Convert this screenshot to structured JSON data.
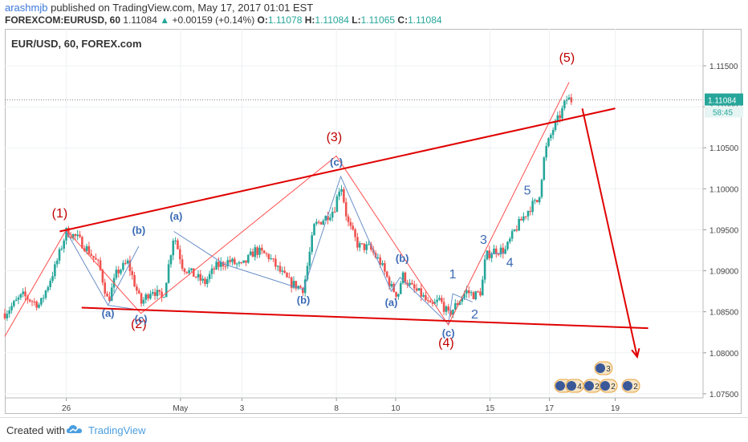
{
  "header": {
    "username": "arashmjb",
    "published_text": "published on TradingView.com, May 17, 2017 01:01 EST",
    "symbol_full": "FOREXCOM:EURUSD, 60",
    "last": "1.11084",
    "change": "+0.00159 (+0.14%)",
    "o_label": "O:",
    "o_value": "1.11078",
    "h_label": "H:",
    "h_value": "1.11084",
    "l_label": "L:",
    "l_value": "1.11065",
    "c_label": "C:",
    "c_value": "1.11084"
  },
  "chart_title": "EUR/USD, 60, FOREX.com",
  "footer": {
    "created_with": "Created with",
    "brand": "TradingView"
  },
  "colors": {
    "bull": "#26a69a",
    "bear": "#ef5350",
    "red": "#e00000",
    "blue": "#6a8fc8",
    "label_blue": "#3b6bb5"
  },
  "chart_data": {
    "type": "candlestick",
    "price_axis": {
      "range": [
        1.0745,
        1.1195
      ],
      "ticks": [
        "1.11500",
        "1.11000",
        "1.10500",
        "1.10000",
        "1.09500",
        "1.09000",
        "1.08500",
        "1.08000",
        "1.07500"
      ],
      "tick_values": [
        1.115,
        1.11,
        1.105,
        1.1,
        1.095,
        1.09,
        1.085,
        1.08,
        1.075
      ],
      "last_price": "1.11084",
      "countdown": "58:45"
    },
    "time_axis": {
      "labels": [
        "26",
        "May",
        "3",
        "8",
        "10",
        "15",
        "17",
        "19"
      ],
      "label_days": [
        0,
        5.2,
        8,
        12.3,
        15,
        19.3,
        22,
        25
      ],
      "day_range": [
        -2.8,
        29
      ]
    },
    "candles_path": [
      [
        -2.8,
        1.0848
      ],
      [
        -2.0,
        1.087
      ],
      [
        -1.2,
        1.0858
      ],
      [
        -0.5,
        1.0905
      ],
      [
        0.0,
        1.0948
      ],
      [
        0.5,
        1.094
      ],
      [
        1.0,
        1.0925
      ],
      [
        1.5,
        1.0906
      ],
      [
        1.9,
        1.0862
      ],
      [
        2.3,
        1.0898
      ],
      [
        2.8,
        1.091
      ],
      [
        3.4,
        1.086
      ],
      [
        3.9,
        1.0878
      ],
      [
        4.4,
        1.0865
      ],
      [
        4.9,
        1.0945
      ],
      [
        5.3,
        1.0905
      ],
      [
        5.8,
        1.0895
      ],
      [
        6.3,
        1.0885
      ],
      [
        6.8,
        1.0905
      ],
      [
        7.4,
        1.0912
      ],
      [
        8.0,
        1.0905
      ],
      [
        8.6,
        1.0925
      ],
      [
        9.2,
        1.0918
      ],
      [
        9.7,
        1.09
      ],
      [
        10.2,
        1.0885
      ],
      [
        10.8,
        1.0878
      ],
      [
        11.3,
        1.0955
      ],
      [
        11.8,
        1.0965
      ],
      [
        12.2,
        1.0975
      ],
      [
        12.5,
        1.1008
      ],
      [
        12.8,
        1.096
      ],
      [
        13.3,
        1.093
      ],
      [
        13.8,
        1.0928
      ],
      [
        14.3,
        1.091
      ],
      [
        14.8,
        1.088
      ],
      [
        15.1,
        1.087
      ],
      [
        15.3,
        1.0895
      ],
      [
        15.7,
        1.088
      ],
      [
        16.2,
        1.087
      ],
      [
        16.6,
        1.0855
      ],
      [
        17.0,
        1.0865
      ],
      [
        17.4,
        1.0846
      ],
      [
        17.8,
        1.086
      ],
      [
        18.2,
        1.0875
      ],
      [
        18.6,
        1.087
      ],
      [
        18.9,
        1.0875
      ],
      [
        19.1,
        1.0918
      ],
      [
        19.5,
        1.0925
      ],
      [
        20.0,
        1.0925
      ],
      [
        20.4,
        1.0948
      ],
      [
        20.8,
        1.0965
      ],
      [
        21.2,
        1.098
      ],
      [
        21.5,
        1.0985
      ],
      [
        21.8,
        1.1045
      ],
      [
        22.2,
        1.1075
      ],
      [
        22.5,
        1.109
      ],
      [
        22.8,
        1.111
      ],
      [
        23.0,
        1.1108
      ]
    ],
    "trendlines": [
      {
        "color": "red",
        "from": [
          -0.3,
          1.0948
        ],
        "to": [
          25.0,
          1.1098
        ]
      },
      {
        "color": "red",
        "from": [
          0.7,
          1.0855
        ],
        "to": [
          26.5,
          1.083
        ]
      },
      {
        "color": "red-arrow",
        "from": [
          23.5,
          1.1098
        ],
        "to": [
          26.0,
          1.0795
        ]
      }
    ],
    "wave_primary": {
      "points": [
        [
          -2.8,
          1.082
        ],
        [
          0.0,
          1.095
        ],
        [
          3.4,
          1.0848
        ],
        [
          12.3,
          1.104
        ],
        [
          17.4,
          1.0834
        ],
        [
          22.9,
          1.113
        ]
      ],
      "labels": [
        "(1)",
        "(2)",
        "(3)",
        "(4)",
        "(5)"
      ],
      "label_points": [
        [
          -0.3,
          1.0965
        ],
        [
          3.3,
          1.083
        ],
        [
          12.2,
          1.1058
        ],
        [
          17.3,
          1.0807
        ],
        [
          22.8,
          1.1155
        ]
      ]
    },
    "wave_minor_lines": [
      [
        [
          0.0,
          1.0948
        ],
        [
          1.9,
          1.0858
        ],
        [
          3.3,
          1.093
        ]
      ],
      [
        [
          1.9,
          1.0858
        ],
        [
          3.4,
          1.0852
        ]
      ],
      [
        [
          4.9,
          1.0948
        ],
        [
          7.2,
          1.0908
        ],
        [
          10.8,
          1.0877
        ],
        [
          12.5,
          1.1015
        ],
        [
          14.8,
          1.0875
        ],
        [
          15.2,
          1.0892
        ],
        [
          17.4,
          1.0835
        ],
        [
          17.6,
          1.0872
        ],
        [
          18.5,
          1.0862
        ]
      ],
      [
        [
          19.1,
          1.092
        ],
        [
          20.0,
          1.0922
        ]
      ]
    ],
    "wave_minor_labels": [
      {
        "text": "(a)",
        "at": [
          1.9,
          1.0844
        ]
      },
      {
        "text": "(b)",
        "at": [
          3.3,
          1.0945
        ]
      },
      {
        "text": "(c)",
        "at": [
          3.4,
          1.0837
        ]
      },
      {
        "text": "(a)",
        "at": [
          5.0,
          1.0962
        ]
      },
      {
        "text": "(b)",
        "at": [
          10.8,
          1.086
        ]
      },
      {
        "text": "(c)",
        "at": [
          12.3,
          1.1028
        ]
      },
      {
        "text": "(a)",
        "at": [
          14.8,
          1.0857
        ]
      },
      {
        "text": "(b)",
        "at": [
          15.3,
          1.0911
        ]
      },
      {
        "text": "(c)",
        "at": [
          17.4,
          1.082
        ]
      },
      {
        "text": "1",
        "at": [
          17.6,
          1.0891
        ]
      },
      {
        "text": "2",
        "at": [
          18.6,
          1.0842
        ]
      },
      {
        "text": "3",
        "at": [
          19.0,
          1.0933
        ]
      },
      {
        "text": "4",
        "at": [
          20.2,
          1.0905
        ]
      },
      {
        "text": "5",
        "at": [
          21.0,
          1.0993
        ]
      }
    ],
    "event_badges": {
      "label_a": "5",
      "label_b": "4",
      "label_c": "2",
      "label_d": "2",
      "label_e": "3",
      "label_f": "2"
    }
  }
}
